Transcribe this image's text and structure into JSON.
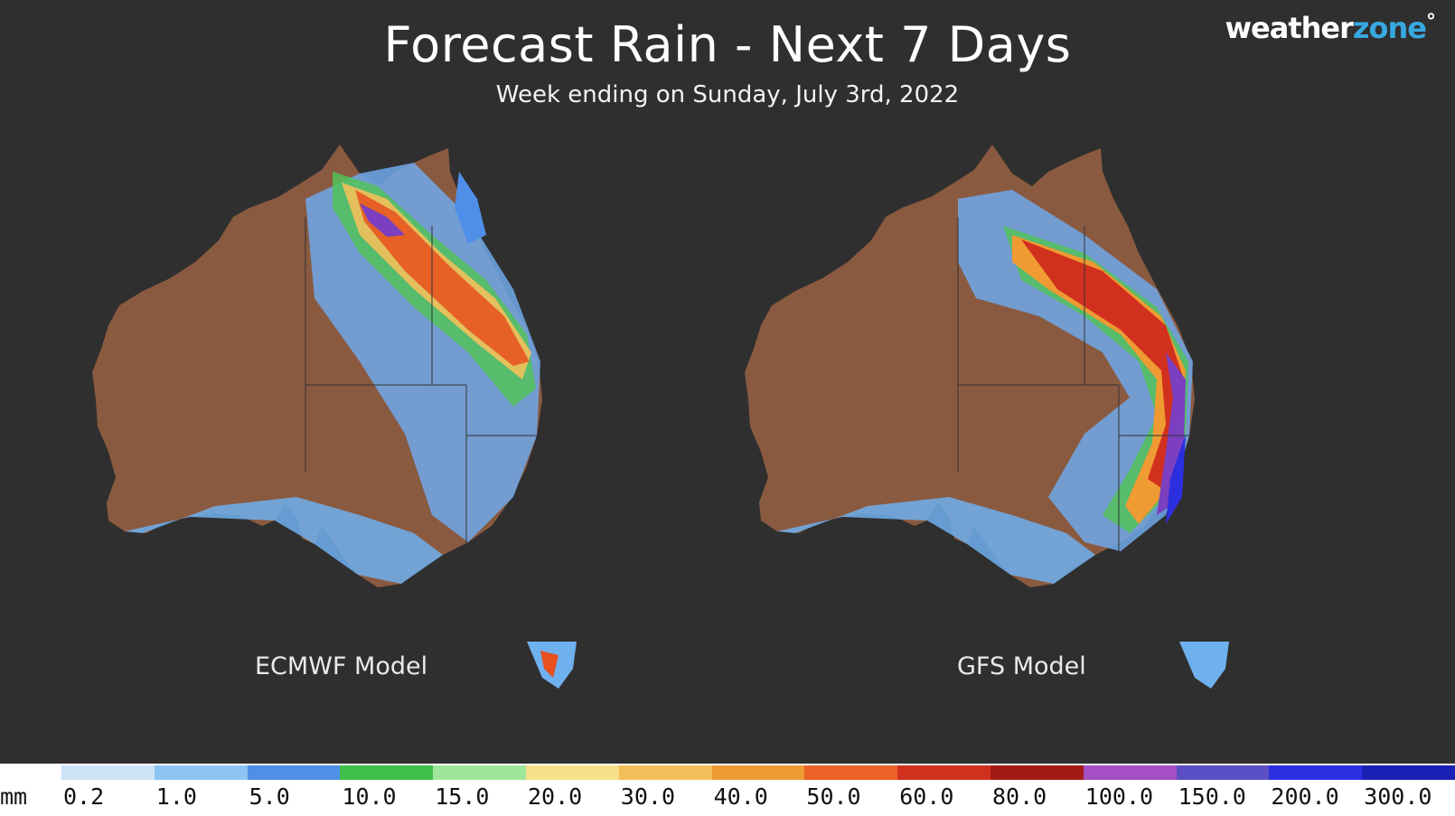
{
  "header": {
    "title": "Forecast Rain - Next 7 Days",
    "subtitle": "Week ending on Sunday, July 3rd, 2022"
  },
  "logo": {
    "part1": "weather",
    "part2": "zone",
    "mark": "°"
  },
  "maps": [
    {
      "label": "ECMWF Model"
    },
    {
      "label": "GFS Model"
    }
  ],
  "legend": {
    "unit": "mm",
    "values": [
      "0.2",
      "1.0",
      "5.0",
      "10.0",
      "15.0",
      "20.0",
      "30.0",
      "40.0",
      "50.0",
      "60.0",
      "80.0",
      "100.0",
      "150.0",
      "200.0",
      "300.0"
    ],
    "colors": [
      "#cfe3f7",
      "#8cc4f2",
      "#4f8fe8",
      "#3fbf4a",
      "#9fe69a",
      "#f7e08a",
      "#f3bf5a",
      "#ef9a32",
      "#ec6227",
      "#d2301f",
      "#a31a17",
      "#a54fc4",
      "#5a4fc4",
      "#2c2fe0",
      "#1b20b4"
    ]
  }
}
